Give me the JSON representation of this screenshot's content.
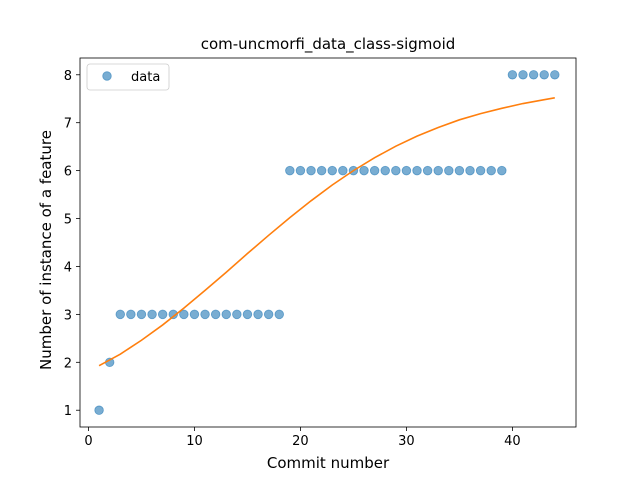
{
  "chart_data": {
    "type": "scatter",
    "title": "com-uncmorfi_data_class-sigmoid",
    "xlabel": "Commit number",
    "ylabel": "Number of instance of a feature",
    "xlim": [
      -0.8,
      46.0
    ],
    "ylim": [
      0.65,
      8.35
    ],
    "xticks": [
      0,
      10,
      20,
      30,
      40
    ],
    "yticks": [
      1,
      2,
      3,
      4,
      5,
      6,
      7,
      8
    ],
    "xtick_labels": [
      "0",
      "10",
      "20",
      "30",
      "40"
    ],
    "ytick_labels": [
      "1",
      "2",
      "3",
      "4",
      "5",
      "6",
      "7",
      "8"
    ],
    "grid": false,
    "legend_position": "upper left",
    "legend": [
      {
        "label": "data",
        "marker": "circle",
        "color": "#1f77b4"
      }
    ],
    "series": [
      {
        "name": "data",
        "type": "scatter",
        "color": "#1f77b4",
        "x": [
          1,
          2,
          3,
          4,
          5,
          6,
          7,
          8,
          9,
          10,
          11,
          12,
          13,
          14,
          15,
          16,
          17,
          18,
          19,
          20,
          21,
          22,
          23,
          24,
          25,
          26,
          27,
          28,
          29,
          30,
          31,
          32,
          33,
          34,
          35,
          36,
          37,
          38,
          39,
          40,
          41,
          42,
          43,
          44
        ],
        "y": [
          1,
          2,
          3,
          3,
          3,
          3,
          3,
          3,
          3,
          3,
          3,
          3,
          3,
          3,
          3,
          3,
          3,
          3,
          6,
          6,
          6,
          6,
          6,
          6,
          6,
          6,
          6,
          6,
          6,
          6,
          6,
          6,
          6,
          6,
          6,
          6,
          6,
          6,
          6,
          8,
          8,
          8,
          8,
          8
        ]
      },
      {
        "type": "line",
        "color": "#ff7f0e",
        "x": [
          1,
          3,
          5,
          7,
          9,
          11,
          13,
          15,
          17,
          19,
          21,
          23,
          25,
          27,
          29,
          31,
          33,
          35,
          37,
          39,
          41,
          43,
          44
        ],
        "y": [
          1.93,
          2.17,
          2.46,
          2.78,
          3.13,
          3.5,
          3.88,
          4.27,
          4.65,
          5.02,
          5.37,
          5.7,
          6.0,
          6.27,
          6.51,
          6.72,
          6.9,
          7.06,
          7.19,
          7.3,
          7.4,
          7.48,
          7.52
        ]
      }
    ]
  }
}
